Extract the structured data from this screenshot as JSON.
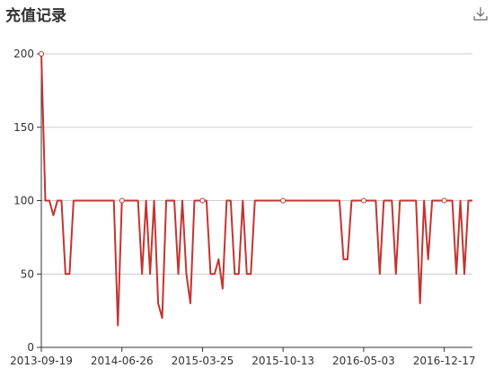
{
  "header": {
    "title": "充值记录",
    "download_icon": "download-icon"
  },
  "colors": {
    "line": "#c23531",
    "grid": "#cccccc",
    "axis": "#333333"
  },
  "chart_data": {
    "type": "line",
    "title": "充值记录",
    "xlabel": "",
    "ylabel": "",
    "ylim": [
      0,
      200
    ],
    "grid": true,
    "yticks": [
      0,
      50,
      100,
      150,
      200
    ],
    "xtick_labels": [
      "2013-09-19",
      "2014-06-26",
      "2015-03-25",
      "2015-10-13",
      "2016-05-03",
      "2016-12-17"
    ],
    "x_tick_positions": [
      0,
      20,
      40,
      60,
      80,
      100
    ],
    "marked_indices": [
      0,
      20,
      40,
      60,
      80,
      100
    ],
    "series": [
      {
        "values": [
          200,
          100,
          100,
          90,
          100,
          100,
          50,
          50,
          100,
          100,
          100,
          100,
          100,
          100,
          100,
          100,
          100,
          100,
          100,
          15,
          100,
          100,
          100,
          100,
          100,
          50,
          100,
          50,
          100,
          30,
          20,
          100,
          100,
          100,
          50,
          100,
          50,
          30,
          100,
          100,
          100,
          100,
          50,
          50,
          60,
          40,
          100,
          100,
          50,
          50,
          100,
          50,
          50,
          100,
          100,
          100,
          100,
          100,
          100,
          100,
          100,
          100,
          100,
          100,
          100,
          100,
          100,
          100,
          100,
          100,
          100,
          100,
          100,
          100,
          100,
          60,
          60,
          100,
          100,
          100,
          100,
          100,
          100,
          100,
          50,
          100,
          100,
          100,
          50,
          100,
          100,
          100,
          100,
          100,
          30,
          100,
          60,
          100,
          100,
          100,
          100,
          100,
          100,
          50,
          100,
          50,
          100,
          100
        ]
      }
    ]
  }
}
